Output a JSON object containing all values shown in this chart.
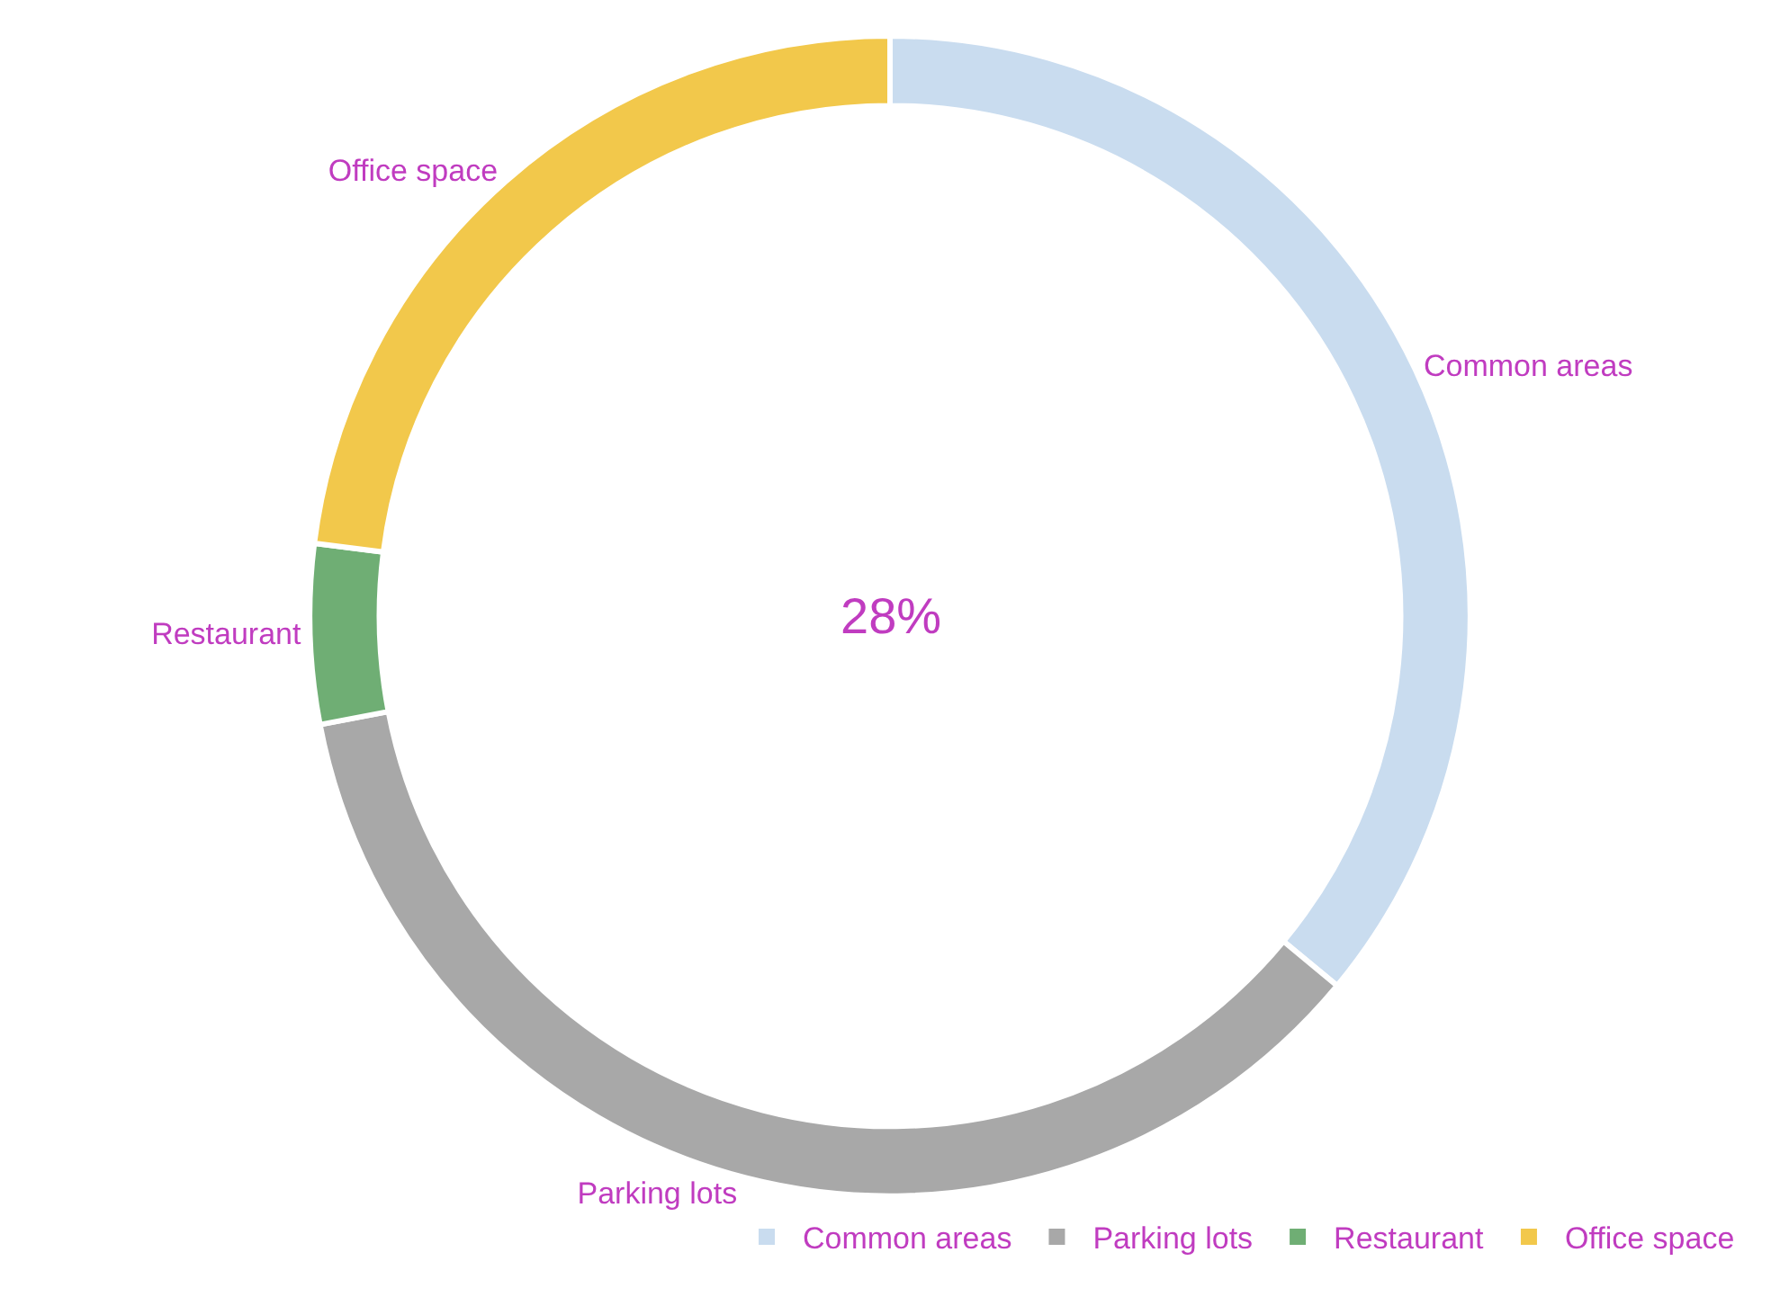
{
  "chart_data": {
    "type": "donut",
    "categories": [
      "Common areas",
      "Parking lots",
      "Restaurant",
      "Office space"
    ],
    "values": [
      36,
      36,
      5,
      23
    ],
    "colors": [
      "#c9dcef",
      "#a8a8a8",
      "#6fae74",
      "#f2c84b"
    ],
    "annotations": [
      "28%"
    ],
    "legend": "bottom right"
  }
}
